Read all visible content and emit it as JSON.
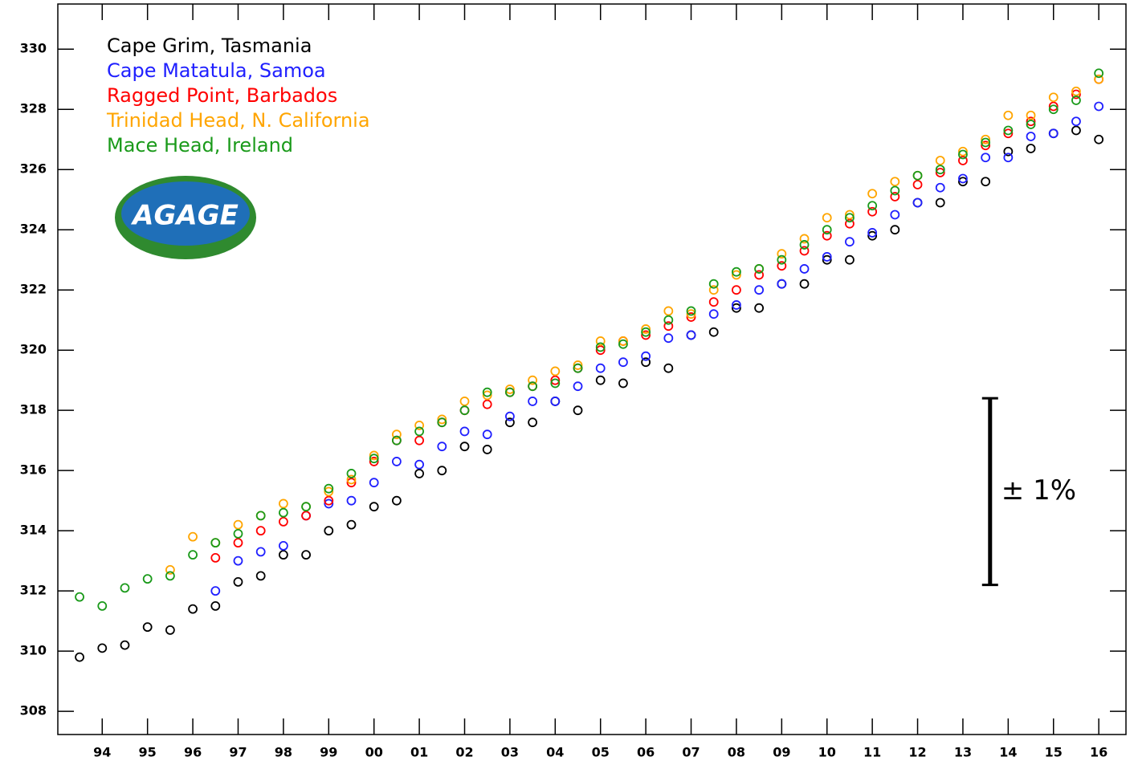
{
  "chart_data": {
    "type": "scatter",
    "xlim": [
      1993.52,
      2017.1
    ],
    "ylim": [
      307.23,
      331.5
    ],
    "xticks": [
      {
        "value": 1994.5,
        "label": "94"
      },
      {
        "value": 1995.5,
        "label": "95"
      },
      {
        "value": 1996.5,
        "label": "96"
      },
      {
        "value": 1997.5,
        "label": "97"
      },
      {
        "value": 1998.5,
        "label": "98"
      },
      {
        "value": 1999.5,
        "label": "99"
      },
      {
        "value": 2000.5,
        "label": "00"
      },
      {
        "value": 2001.5,
        "label": "01"
      },
      {
        "value": 2002.5,
        "label": "02"
      },
      {
        "value": 2003.5,
        "label": "03"
      },
      {
        "value": 2004.5,
        "label": "04"
      },
      {
        "value": 2005.5,
        "label": "05"
      },
      {
        "value": 2006.5,
        "label": "06"
      },
      {
        "value": 2007.5,
        "label": "07"
      },
      {
        "value": 2008.5,
        "label": "08"
      },
      {
        "value": 2009.5,
        "label": "09"
      },
      {
        "value": 2010.5,
        "label": "10"
      },
      {
        "value": 2011.5,
        "label": "11"
      },
      {
        "value": 2012.5,
        "label": "12"
      },
      {
        "value": 2013.5,
        "label": "13"
      },
      {
        "value": 2014.5,
        "label": "14"
      },
      {
        "value": 2015.5,
        "label": "15"
      },
      {
        "value": 2016.5,
        "label": "16"
      }
    ],
    "yticks": [
      308,
      310,
      312,
      314,
      316,
      318,
      320,
      322,
      324,
      326,
      328,
      330
    ],
    "legend": "upper left",
    "logo_text": "AGAGE",
    "scale_bar": {
      "label": "± 1%",
      "x": 2014.1,
      "ylim": [
        312.2,
        318.4
      ]
    },
    "series": [
      {
        "name": "Cape Grim, Tasmania",
        "color": "#000000",
        "x": [
          1994.0,
          1994.5,
          1995.0,
          1995.5,
          1996.0,
          1996.5,
          1997.0,
          1997.5,
          1998.0,
          1998.5,
          1999.0,
          1999.5,
          2000.0,
          2000.5,
          2001.0,
          2001.5,
          2002.0,
          2002.5,
          2003.0,
          2003.5,
          2004.0,
          2004.5,
          2005.0,
          2005.5,
          2006.0,
          2006.5,
          2007.0,
          2007.5,
          2008.0,
          2008.5,
          2009.0,
          2009.5,
          2010.0,
          2010.5,
          2011.0,
          2011.5,
          2012.0,
          2012.5,
          2013.0,
          2013.5,
          2014.0,
          2014.5,
          2015.0,
          2015.5,
          2016.0,
          2016.5
        ],
        "values": [
          309.8,
          310.1,
          310.2,
          310.8,
          310.7,
          311.4,
          311.5,
          312.3,
          312.5,
          313.2,
          313.2,
          314.0,
          314.2,
          314.8,
          315.0,
          315.9,
          316.0,
          316.8,
          316.7,
          317.6,
          317.6,
          318.3,
          318.0,
          319.0,
          318.9,
          319.6,
          319.4,
          320.5,
          320.6,
          321.4,
          321.4,
          322.2,
          322.2,
          323.0,
          323.0,
          323.8,
          324.0,
          324.9,
          324.9,
          325.6,
          325.6,
          326.6,
          326.7,
          327.2,
          327.3,
          327.0
        ]
      },
      {
        "name": "Cape Matatula, Samoa",
        "color": "#2020ff",
        "x": [
          1997.0,
          1997.5,
          1998.0,
          1998.5,
          1999.0,
          1999.5,
          2000.0,
          2000.5,
          2001.0,
          2001.5,
          2002.0,
          2002.5,
          2003.0,
          2003.5,
          2004.0,
          2004.5,
          2005.0,
          2005.5,
          2006.0,
          2006.5,
          2007.0,
          2007.5,
          2008.0,
          2008.5,
          2009.0,
          2009.5,
          2010.0,
          2010.5,
          2011.0,
          2011.5,
          2012.0,
          2012.5,
          2013.0,
          2013.5,
          2014.0,
          2014.5,
          2015.0,
          2015.5,
          2016.0,
          2016.5
        ],
        "values": [
          312.0,
          313.0,
          313.3,
          313.5,
          314.5,
          314.9,
          315.0,
          315.6,
          316.3,
          316.2,
          316.8,
          317.3,
          317.2,
          317.8,
          318.3,
          318.3,
          318.8,
          319.4,
          319.6,
          319.8,
          320.4,
          320.5,
          321.2,
          321.5,
          322.0,
          322.2,
          322.7,
          323.1,
          323.6,
          323.9,
          324.5,
          324.9,
          325.4,
          325.7,
          326.4,
          326.4,
          327.1,
          327.2,
          327.6,
          328.1
        ]
      },
      {
        "name": "Ragged Point, Barbados",
        "color": "#ff0000",
        "x": [
          1997.0,
          1997.5,
          1998.0,
          1998.5,
          1999.0,
          1999.5,
          2000.0,
          2000.5,
          2001.0,
          2001.5,
          2002.0,
          2002.5,
          2003.0,
          2003.5,
          2004.0,
          2004.5,
          2005.0,
          2005.5,
          2006.0,
          2006.5,
          2007.0,
          2007.5,
          2008.0,
          2008.5,
          2009.0,
          2009.5,
          2010.0,
          2010.5,
          2011.0,
          2011.5,
          2012.0,
          2012.5,
          2013.0,
          2013.5,
          2014.0,
          2014.5,
          2015.0,
          2015.5,
          2016.0,
          2016.5
        ],
        "values": [
          313.1,
          313.6,
          314.0,
          314.3,
          314.5,
          315.0,
          315.6,
          316.3,
          317.0,
          317.0,
          317.6,
          318.0,
          318.2,
          318.6,
          318.8,
          319.0,
          319.4,
          320.0,
          320.3,
          320.5,
          320.8,
          321.1,
          321.6,
          322.0,
          322.5,
          322.8,
          323.3,
          323.8,
          324.2,
          324.6,
          325.1,
          325.5,
          325.9,
          326.3,
          326.8,
          327.2,
          327.6,
          328.1,
          328.5,
          329.0
        ]
      },
      {
        "name": "Trinidad Head, N. California",
        "color": "#ffa500",
        "x": [
          1996.0,
          1996.5,
          1997.0,
          1997.5,
          1998.0,
          1998.5,
          1999.0,
          1999.5,
          2000.0,
          2000.5,
          2001.0,
          2001.5,
          2002.0,
          2002.5,
          2003.0,
          2003.5,
          2004.0,
          2004.5,
          2005.0,
          2005.5,
          2006.0,
          2006.5,
          2007.0,
          2007.5,
          2008.0,
          2008.5,
          2009.0,
          2009.5,
          2010.0,
          2010.5,
          2011.0,
          2011.5,
          2012.0,
          2012.5,
          2013.0,
          2013.5,
          2014.0,
          2014.5,
          2015.0,
          2015.5,
          2016.0,
          2016.5
        ],
        "values": [
          312.7,
          313.8,
          313.6,
          314.2,
          314.5,
          314.9,
          314.8,
          315.3,
          315.7,
          316.5,
          317.2,
          317.5,
          317.7,
          318.3,
          318.5,
          318.7,
          319.0,
          319.3,
          319.5,
          320.3,
          320.3,
          320.7,
          321.3,
          321.2,
          322.0,
          322.5,
          322.7,
          323.2,
          323.7,
          324.4,
          324.5,
          325.2,
          325.6,
          325.8,
          326.3,
          326.6,
          327.0,
          327.8,
          327.8,
          328.4,
          328.6,
          329.0
        ]
      },
      {
        "name": "Mace Head, Ireland",
        "color": "#1a9a1a",
        "x": [
          1994.0,
          1994.5,
          1995.0,
          1995.5,
          1996.0,
          1996.5,
          1997.0,
          1997.5,
          1998.0,
          1998.5,
          1999.0,
          1999.5,
          2000.0,
          2000.5,
          2001.0,
          2001.5,
          2002.0,
          2002.5,
          2003.0,
          2003.5,
          2004.0,
          2004.5,
          2005.0,
          2005.5,
          2006.0,
          2006.5,
          2007.0,
          2007.5,
          2008.0,
          2008.5,
          2009.0,
          2009.5,
          2010.0,
          2010.5,
          2011.0,
          2011.5,
          2012.0,
          2012.5,
          2013.0,
          2013.5,
          2014.0,
          2014.5,
          2015.0,
          2015.5,
          2016.0,
          2016.5
        ],
        "values": [
          311.8,
          311.5,
          312.1,
          312.4,
          312.5,
          313.2,
          313.6,
          313.9,
          314.5,
          314.6,
          314.8,
          315.4,
          315.9,
          316.4,
          317.0,
          317.3,
          317.6,
          318.0,
          318.6,
          318.6,
          318.8,
          318.9,
          319.4,
          320.1,
          320.2,
          320.6,
          321.0,
          321.3,
          322.2,
          322.6,
          322.7,
          323.0,
          323.5,
          324.0,
          324.4,
          324.8,
          325.3,
          325.8,
          326.0,
          326.5,
          326.9,
          327.3,
          327.5,
          328.0,
          328.3,
          329.2
        ]
      }
    ]
  }
}
